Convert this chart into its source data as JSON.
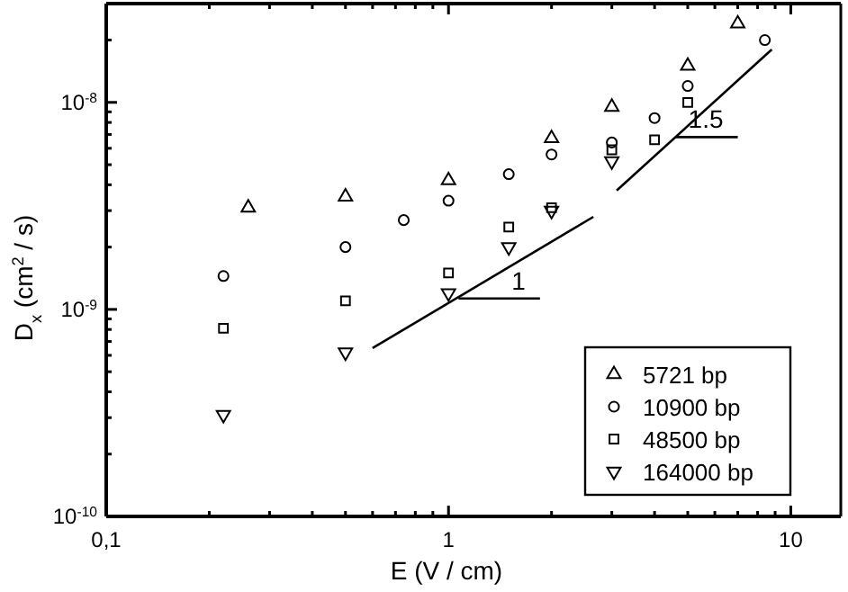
{
  "chart_data": {
    "type": "scatter",
    "xlabel": "E (V / cm)",
    "ylabel": "D$_{x}$ (cm$^{2}$ / s)",
    "log": "xy",
    "grid": false,
    "legend": "bottom right",
    "xlim": [
      0.1,
      14
    ],
    "ylim": [
      1e-10,
      3e-08
    ],
    "xticks": [
      {
        "value": 0.1,
        "label": "0,1"
      },
      {
        "value": 0.2,
        "label": null
      },
      {
        "value": 0.3,
        "label": null
      },
      {
        "value": 0.4,
        "label": null
      },
      {
        "value": 0.5,
        "label": null
      },
      {
        "value": 0.6,
        "label": null
      },
      {
        "value": 0.7,
        "label": null
      },
      {
        "value": 0.8,
        "label": null
      },
      {
        "value": 0.9,
        "label": null
      },
      {
        "value": 1,
        "label": "1"
      },
      {
        "value": 2,
        "label": null
      },
      {
        "value": 3,
        "label": null
      },
      {
        "value": 4,
        "label": null
      },
      {
        "value": 5,
        "label": null
      },
      {
        "value": 6,
        "label": null
      },
      {
        "value": 7,
        "label": null
      },
      {
        "value": 8,
        "label": null
      },
      {
        "value": 9,
        "label": null
      },
      {
        "value": 10,
        "label": "10"
      }
    ],
    "yticks": [
      {
        "value": 1e-10,
        "label": "10$^{-10}$"
      },
      {
        "value": 2e-10,
        "label": null
      },
      {
        "value": 3e-10,
        "label": null
      },
      {
        "value": 4e-10,
        "label": null
      },
      {
        "value": 5e-10,
        "label": null
      },
      {
        "value": 6e-10,
        "label": null
      },
      {
        "value": 7e-10,
        "label": null
      },
      {
        "value": 8e-10,
        "label": null
      },
      {
        "value": 9e-10,
        "label": null
      },
      {
        "value": 1e-09,
        "label": "10$^{-9}$"
      },
      {
        "value": 2e-09,
        "label": null
      },
      {
        "value": 3e-09,
        "label": null
      },
      {
        "value": 4e-09,
        "label": null
      },
      {
        "value": 5e-09,
        "label": null
      },
      {
        "value": 6e-09,
        "label": null
      },
      {
        "value": 7e-09,
        "label": null
      },
      {
        "value": 8e-09,
        "label": null
      },
      {
        "value": 9e-09,
        "label": null
      },
      {
        "value": 1e-08,
        "label": "10$^{-8}$"
      },
      {
        "value": 2e-08,
        "label": null
      }
    ],
    "series": [
      {
        "name": "5721 bp",
        "color": "#000000",
        "marker": "triangle",
        "x": [
          0.26,
          0.5,
          1.0,
          2.0,
          3.0,
          5.0,
          7.0
        ],
        "values": [
          3.1e-09,
          3.5e-09,
          4.2e-09,
          6.7e-09,
          9.5e-09,
          1.5e-08,
          2.4e-08
        ]
      },
      {
        "name": "10900 bp",
        "color": "#000000",
        "marker": "circle",
        "x": [
          0.22,
          0.5,
          0.74,
          1.0,
          1.5,
          2.0,
          3.0,
          4.0,
          5.0,
          8.4
        ],
        "values": [
          1.45e-09,
          2e-09,
          2.7e-09,
          3.35e-09,
          4.5e-09,
          5.6e-09,
          6.4e-09,
          8.4e-09,
          1.2e-08,
          2e-08
        ]
      },
      {
        "name": "48500 bp",
        "color": "#000000",
        "marker": "square",
        "x": [
          0.22,
          0.5,
          1.0,
          1.5,
          2.0,
          3.0,
          4.0,
          5.0
        ],
        "values": [
          8.1e-10,
          1.1e-09,
          1.5e-09,
          2.5e-09,
          3.1e-09,
          5.9e-09,
          6.6e-09,
          1e-08
        ]
      },
      {
        "name": "164000 bp",
        "color": "#000000",
        "marker": "triangle-down",
        "x": [
          0.22,
          0.5,
          1.0,
          1.5,
          2.0,
          3.0
        ],
        "values": [
          3.1e-10,
          6.2e-10,
          1.2e-09,
          2e-09,
          3e-09,
          5.2e-09
        ]
      },
      {
        "type": "line",
        "color": "#000000",
        "marker": "none",
        "x": [
          0.6,
          2.65
        ],
        "values": [
          6.5e-10,
          2.8e-09
        ]
      },
      {
        "type": "line",
        "color": "#000000",
        "marker": "none",
        "x": [
          3.1,
          8.8
        ],
        "values": [
          3.75e-09,
          1.8e-08
        ]
      },
      {
        "type": "line",
        "color": "#000000",
        "marker": "none",
        "x": [
          1.07,
          1.85
        ],
        "values": [
          1.13e-09,
          1.13e-09
        ]
      },
      {
        "type": "line",
        "color": "#000000",
        "marker": "none",
        "x": [
          4.6,
          7.0
        ],
        "values": [
          6.8e-09,
          6.8e-09
        ]
      }
    ],
    "annotations": [
      {
        "text": "1",
        "x": 1.85,
        "y": 1.13e-09
      },
      {
        "text": "1.5",
        "x": 7.0,
        "y": 6.8e-09
      }
    ]
  }
}
